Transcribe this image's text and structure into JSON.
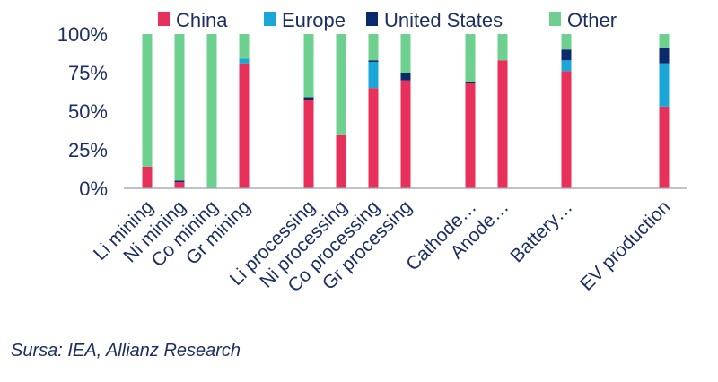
{
  "chart_data": {
    "type": "bar",
    "stacked": true,
    "categories": [
      "Li mining",
      "Ni mining",
      "Co mining",
      "Gr mining",
      "Li processing",
      "Ni processing",
      "Co processing",
      "Gr processing",
      "Cathode…",
      "Anode…",
      "Battery…",
      "EV production"
    ],
    "series": [
      {
        "name": "China",
        "color": "#e8315a",
        "values": [
          14,
          4,
          0,
          81,
          57,
          35,
          65,
          70,
          68,
          83,
          76,
          53
        ]
      },
      {
        "name": "Europe",
        "color": "#1aa7d8",
        "values": [
          0,
          0,
          0,
          3,
          0,
          0,
          17,
          0,
          0,
          0,
          7,
          28
        ]
      },
      {
        "name": "United States",
        "color": "#0b2a6e",
        "values": [
          0,
          1,
          0,
          0,
          2,
          0,
          1,
          5,
          1,
          0,
          7,
          10
        ]
      },
      {
        "name": "Other",
        "color": "#6ed08e",
        "values": [
          86,
          95,
          100,
          16,
          41,
          65,
          17,
          25,
          31,
          17,
          10,
          9
        ]
      }
    ],
    "y_ticks": [
      "0%",
      "25%",
      "50%",
      "75%",
      "100%"
    ],
    "ylim": [
      0,
      100
    ],
    "legend_position": "top",
    "grid": false
  },
  "source_text": "Sursa: IEA, Allianz Research"
}
